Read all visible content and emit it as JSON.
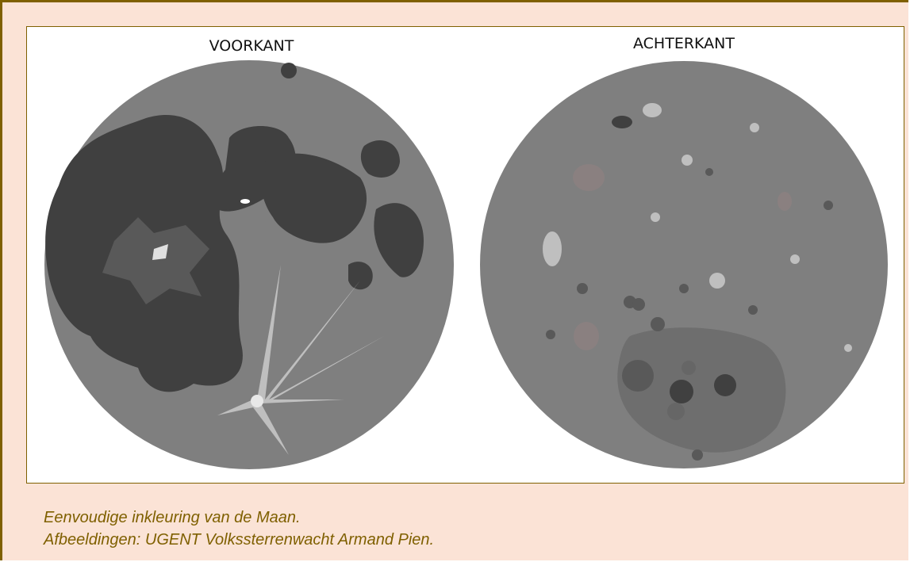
{
  "figure": {
    "panels": [
      {
        "label": "VOORKANT"
      },
      {
        "label": "ACHTERKANT"
      }
    ]
  },
  "caption": {
    "lines": [
      "Eenvoudige inkleuring van de Maan.",
      "Afbeeldingen: UGENT Volkssterrenwacht Armand Pien."
    ]
  }
}
